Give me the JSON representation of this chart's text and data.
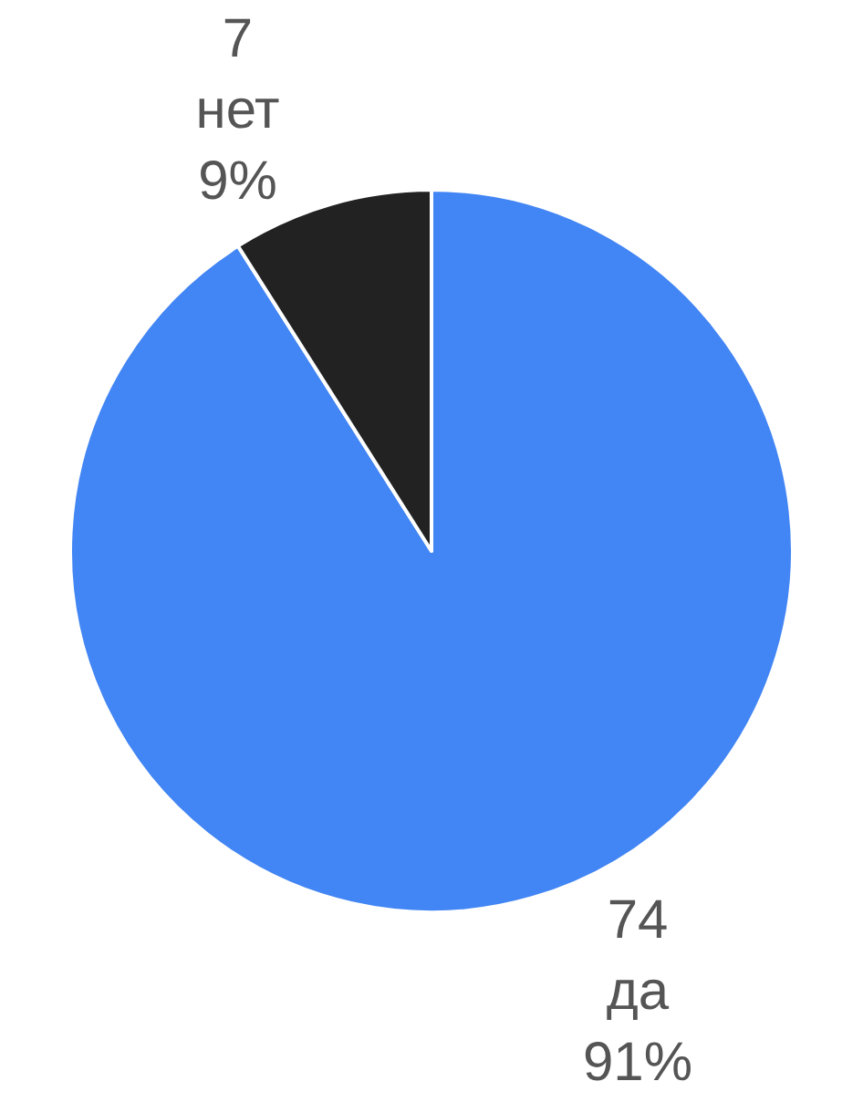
{
  "chart_data": {
    "type": "pie",
    "categories": [
      "да",
      "нет"
    ],
    "values": [
      91,
      9
    ],
    "colors": [
      "#4285f4",
      "#222222"
    ],
    "value_labels": [
      "91%",
      "9%"
    ],
    "annotations": [
      {
        "text": "74",
        "x": "да"
      },
      {
        "text": "7",
        "x": "нет"
      }
    ],
    "legend": false
  }
}
